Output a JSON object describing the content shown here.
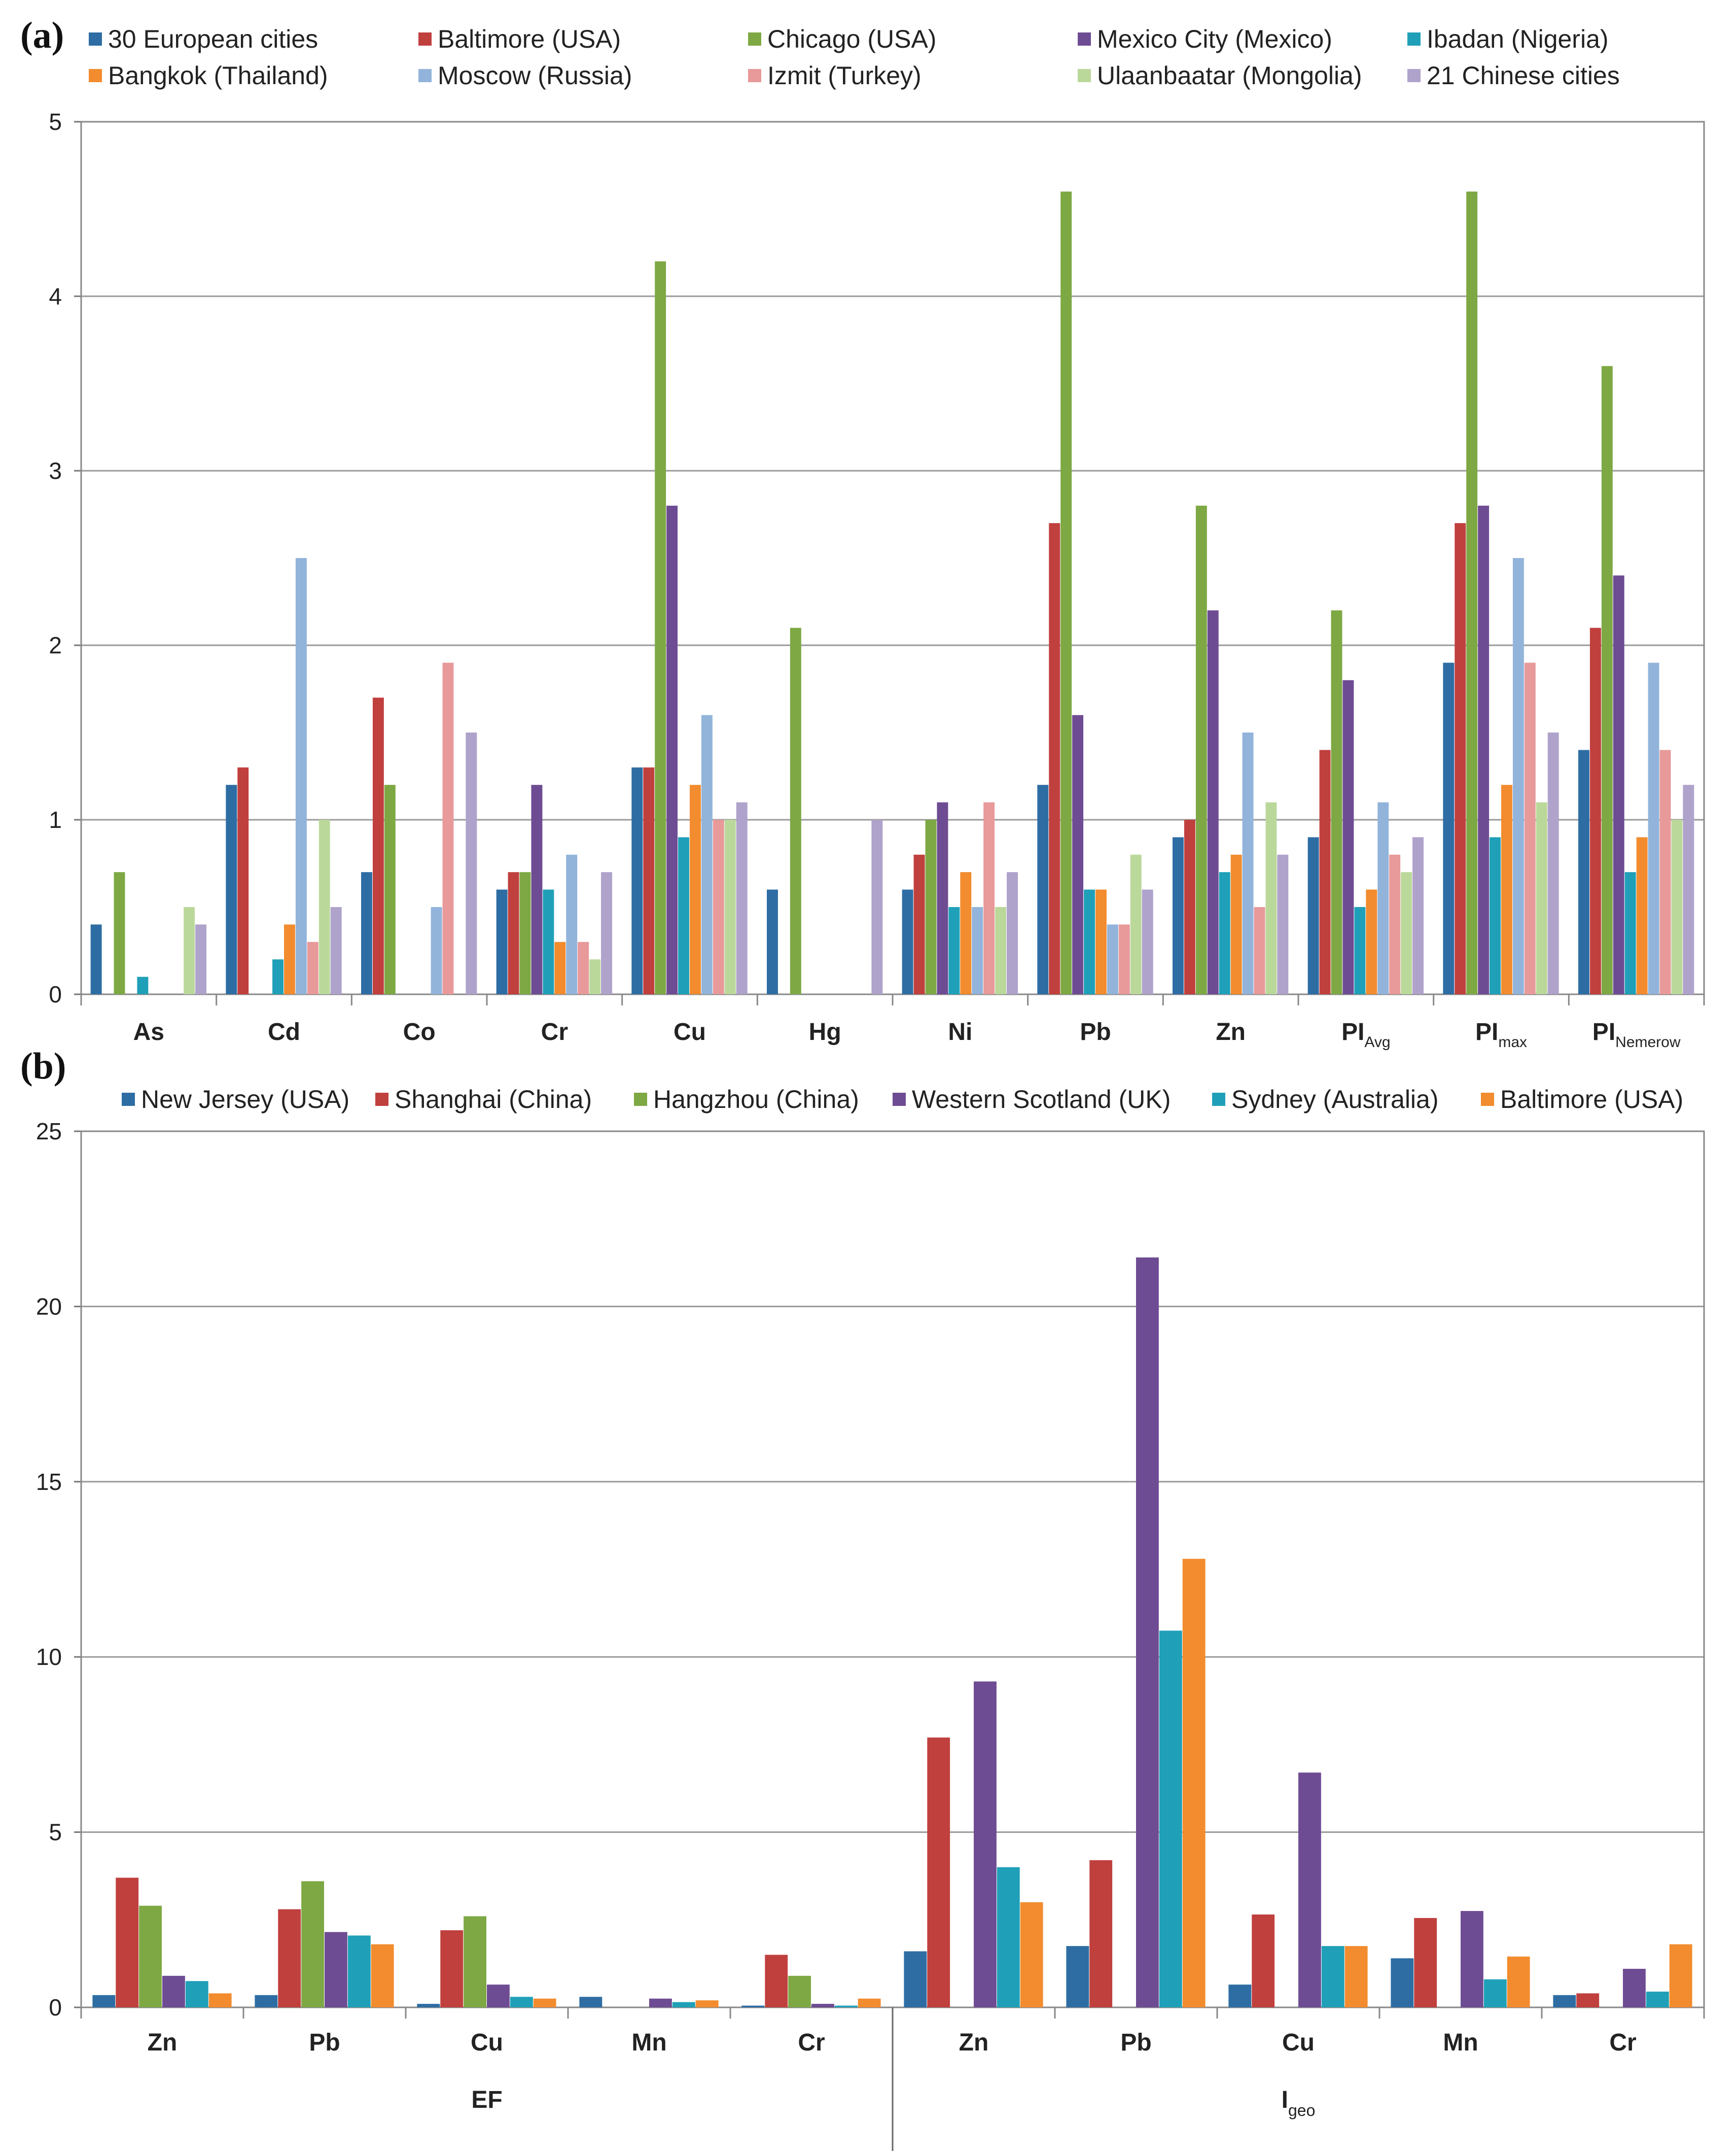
{
  "colors": {
    "blue": "#2E6DA4",
    "red": "#C0403E",
    "green": "#7EA844",
    "purple": "#6E4C93",
    "teal": "#1FA0B8",
    "orange": "#F28C2E",
    "lightblue": "#92B4DB",
    "pink": "#E8999A",
    "lightgreen": "#BBD89B",
    "lavender": "#AFA2CB"
  },
  "chart_data": [
    {
      "panel_label": "(a)",
      "type": "bar",
      "title": "",
      "xlabel": "",
      "ylabel": "",
      "ylim": [
        0,
        5
      ],
      "yticks": [
        "0",
        "1",
        "2",
        "3",
        "4",
        "5"
      ],
      "grid": true,
      "legend_position": "top",
      "categories": [
        {
          "main": "As",
          "sub": ""
        },
        {
          "main": "Cd",
          "sub": ""
        },
        {
          "main": "Co",
          "sub": ""
        },
        {
          "main": "Cr",
          "sub": ""
        },
        {
          "main": "Cu",
          "sub": ""
        },
        {
          "main": "Hg",
          "sub": ""
        },
        {
          "main": "Ni",
          "sub": ""
        },
        {
          "main": "Pb",
          "sub": ""
        },
        {
          "main": "Zn",
          "sub": ""
        },
        {
          "main": "PI",
          "sub": "Avg"
        },
        {
          "main": "PI",
          "sub": "max"
        },
        {
          "main": "PI",
          "sub": "Nemerow"
        }
      ],
      "series": [
        {
          "name": "30 European cities",
          "color": "#2E6DA4",
          "values": [
            0.4,
            1.2,
            0.7,
            0.6,
            1.3,
            0.6,
            0.6,
            1.2,
            0.9,
            0.9,
            1.9,
            1.4
          ]
        },
        {
          "name": "Baltimore (USA)",
          "color": "#C0403E",
          "values": [
            0,
            1.3,
            1.7,
            0.7,
            1.3,
            0,
            0.8,
            2.7,
            1.0,
            1.4,
            2.7,
            2.1
          ]
        },
        {
          "name": "Chicago (USA)",
          "color": "#7EA844",
          "values": [
            0.7,
            0,
            1.2,
            0.7,
            4.2,
            2.1,
            1.0,
            4.6,
            2.8,
            2.2,
            4.6,
            3.6
          ]
        },
        {
          "name": "Mexico City (Mexico)",
          "color": "#6E4C93",
          "values": [
            0,
            0,
            0,
            1.2,
            2.8,
            0,
            1.1,
            1.6,
            2.2,
            1.8,
            2.8,
            2.4
          ]
        },
        {
          "name": "Ibadan (Nigeria)",
          "color": "#1FA0B8",
          "values": [
            0.1,
            0.2,
            0,
            0.6,
            0.9,
            0,
            0.5,
            0.6,
            0.7,
            0.5,
            0.9,
            0.7
          ]
        },
        {
          "name": "Bangkok (Thailand)",
          "color": "#F28C2E",
          "values": [
            0,
            0.4,
            0,
            0.3,
            1.2,
            0,
            0.7,
            0.6,
            0.8,
            0.6,
            1.2,
            0.9
          ]
        },
        {
          "name": "Moscow (Russia)",
          "color": "#92B4DB",
          "values": [
            0,
            2.5,
            0.5,
            0.8,
            1.6,
            0,
            0.5,
            0.4,
            1.5,
            1.1,
            2.5,
            1.9
          ]
        },
        {
          "name": "Izmit (Turkey)",
          "color": "#E8999A",
          "values": [
            0,
            0.3,
            1.9,
            0.3,
            1.0,
            0,
            1.1,
            0.4,
            0.5,
            0.8,
            1.9,
            1.4
          ]
        },
        {
          "name": "Ulaanbaatar (Mongolia)",
          "color": "#BBD89B",
          "values": [
            0.5,
            1.0,
            0,
            0.2,
            1.0,
            0,
            0.5,
            0.8,
            1.1,
            0.7,
            1.1,
            1.0
          ]
        },
        {
          "name": "21 Chinese cities",
          "color": "#AFA2CB",
          "values": [
            0.4,
            0.5,
            1.5,
            0.7,
            1.1,
            1.0,
            0.7,
            0.6,
            0.8,
            0.9,
            1.5,
            1.2
          ]
        }
      ]
    },
    {
      "panel_label": "(b)",
      "type": "bar",
      "title": "",
      "xlabel": "",
      "ylabel": "",
      "ylim": [
        0,
        25
      ],
      "yticks": [
        "0",
        "5",
        "10",
        "15",
        "20",
        "25"
      ],
      "grid": true,
      "legend_position": "top",
      "categories": [
        "Zn",
        "Pb",
        "Cu",
        "Mn",
        "Cr",
        "Zn",
        "Pb",
        "Cu",
        "Mn",
        "Cr"
      ],
      "groups": [
        {
          "main": "EF",
          "sub": ""
        },
        {
          "main": "I",
          "sub": "geo"
        }
      ],
      "series": [
        {
          "name": "New Jersey (USA)",
          "color": "#2E6DA4",
          "values": [
            0.35,
            0.35,
            0.1,
            0.3,
            0.05,
            1.6,
            1.75,
            0.65,
            1.4,
            0.35
          ]
        },
        {
          "name": "Shanghai (China)",
          "color": "#C0403E",
          "values": [
            3.7,
            2.8,
            2.2,
            0,
            1.5,
            7.7,
            4.2,
            2.65,
            2.55,
            0.4
          ]
        },
        {
          "name": "Hangzhou (China)",
          "color": "#7EA844",
          "values": [
            2.9,
            3.6,
            2.6,
            0,
            0.9,
            0,
            0,
            0,
            0,
            0
          ]
        },
        {
          "name": "Western Scotland (UK)",
          "color": "#6E4C93",
          "values": [
            0.9,
            2.15,
            0.65,
            0.25,
            0.1,
            9.3,
            21.4,
            6.7,
            2.75,
            1.1
          ]
        },
        {
          "name": "Sydney (Australia)",
          "color": "#1FA0B8",
          "values": [
            0.75,
            2.05,
            0.3,
            0.15,
            0.05,
            4.0,
            10.75,
            1.75,
            0.8,
            0.45
          ]
        },
        {
          "name": "Baltimore (USA)",
          "color": "#F28C2E",
          "values": [
            0.4,
            1.8,
            0.25,
            0.2,
            0.25,
            3.0,
            12.8,
            1.75,
            1.45,
            1.8
          ]
        }
      ]
    }
  ]
}
